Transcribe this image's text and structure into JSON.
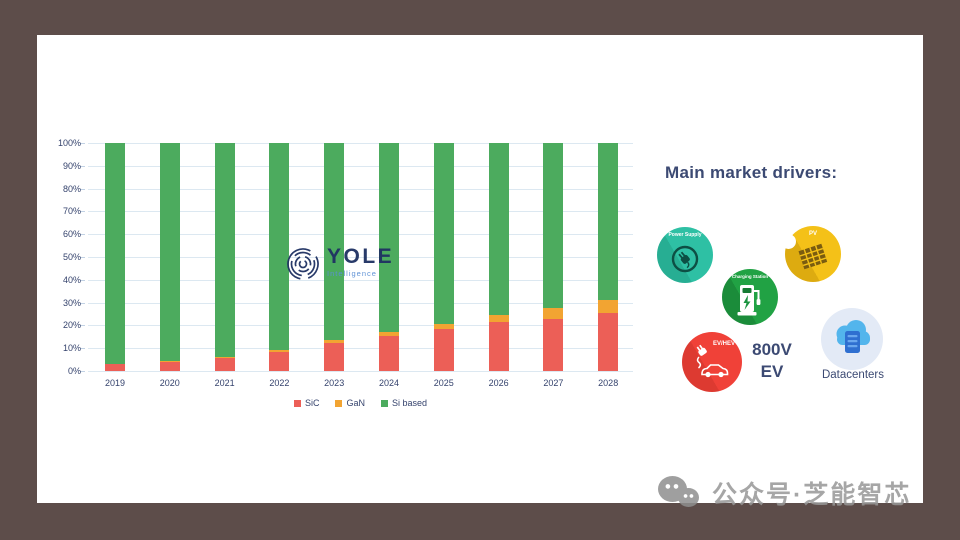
{
  "page": {
    "background": "#5d4d4a",
    "card_background": "#ffffff"
  },
  "chart_data": {
    "type": "bar",
    "stacked": true,
    "title": "",
    "xlabel": "",
    "ylabel": "",
    "categories": [
      "2019",
      "2020",
      "2021",
      "2022",
      "2023",
      "2024",
      "2025",
      "2026",
      "2027",
      "2028"
    ],
    "series": [
      {
        "name": "SiC",
        "color": "#ec5f57",
        "values": [
          3,
          4,
          5.5,
          8.5,
          12.5,
          15.5,
          18.5,
          21.5,
          23,
          25.5
        ]
      },
      {
        "name": "GaN",
        "color": "#f2a432",
        "values": [
          0.3,
          0.4,
          0.6,
          0.8,
          1.2,
          1.6,
          2.2,
          3.2,
          4.5,
          5.5
        ]
      },
      {
        "name": "Si based",
        "color": "#4cab5e",
        "values": [
          96.7,
          95.6,
          93.9,
          90.7,
          86.3,
          82.9,
          79.3,
          75.3,
          72.5,
          69
        ]
      }
    ],
    "ylim": [
      0,
      100
    ],
    "yticks": [
      "0%",
      "10%",
      "20%",
      "30%",
      "40%",
      "50%",
      "60%",
      "70%",
      "80%",
      "90%",
      "100%"
    ],
    "grid": true,
    "legend_position": "bottom"
  },
  "watermark_logo": {
    "title": "YOLE",
    "subtitle": "Intelligence"
  },
  "drivers": {
    "heading": "Main market drivers:",
    "items": [
      {
        "label": "Power Supply",
        "color": "#2ec0a4"
      },
      {
        "label": "PV",
        "color": "#f4c118"
      },
      {
        "label": "Charging Station",
        "color": "#21a244"
      },
      {
        "label": "EV/HEV",
        "color": "#f04138"
      },
      {
        "label": "Datacenters",
        "color": "#e3eaf6"
      }
    ],
    "ev800": {
      "line1": "800V",
      "line2": "EV"
    }
  },
  "footer": {
    "watermark_text": "公众号·芝能智芯",
    "color": "#979797"
  }
}
